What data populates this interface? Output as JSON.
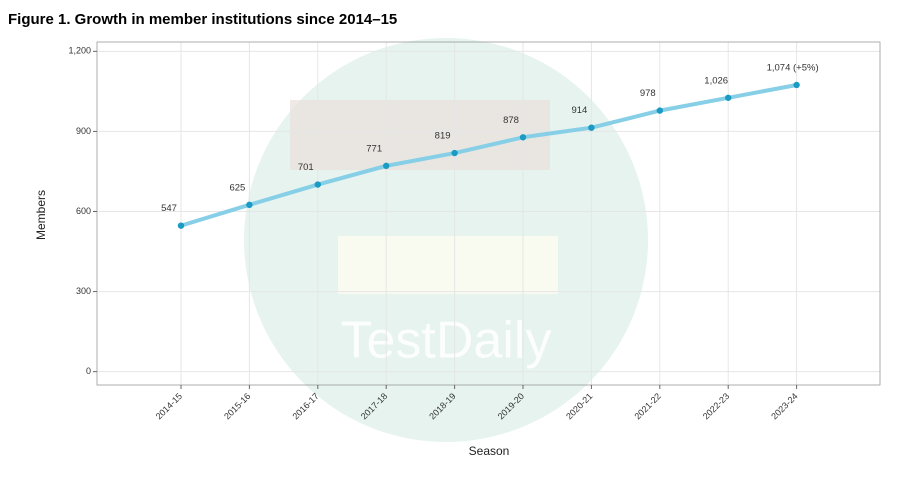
{
  "chart_data": {
    "type": "line",
    "title": "Figure 1. Growth in member institutions since 2014–15",
    "x_label": "Season",
    "y_label": "Members",
    "watermark": "TestDaily",
    "categories": [
      "2014-15",
      "2015-16",
      "2016-17",
      "2017-18",
      "2018-19",
      "2019-20",
      "2020-21",
      "2021-22",
      "2022-23",
      "2023-24"
    ],
    "values": [
      547,
      625,
      701,
      771,
      819,
      878,
      914,
      978,
      1026,
      1074
    ],
    "value_labels": [
      "547",
      "625",
      "701",
      "771",
      "819",
      "878",
      "914",
      "978",
      "1,026",
      "1,074 (+5%)"
    ],
    "line_color": "#86cfe6",
    "marker_color": "#1a9bc4",
    "ylim": [
      -50,
      1235
    ],
    "yticks": [
      0,
      300,
      600,
      900,
      {
        "value": 1200,
        "label": "1,200"
      }
    ],
    "grid": true
  }
}
